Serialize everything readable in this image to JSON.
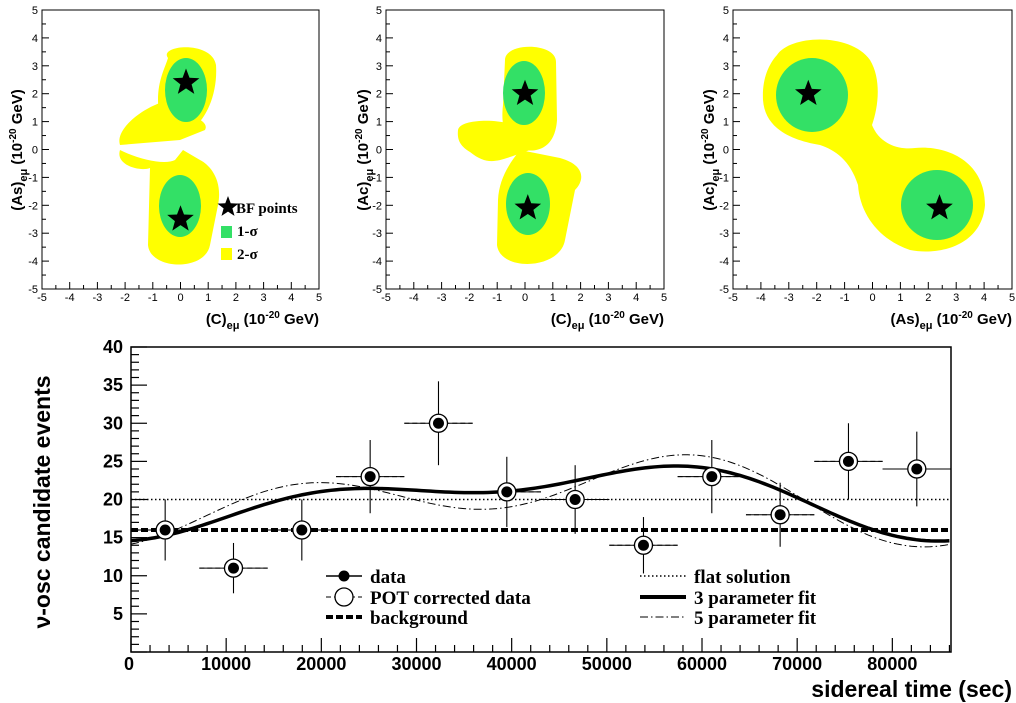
{
  "chart_data": [
    {
      "type": "contour",
      "panel": "top-left",
      "xlabel": "(C)eμ (10-20 GeV)",
      "ylabel": "(As)eμ (10-20 GeV)",
      "xlim": [
        -5,
        5
      ],
      "ylim": [
        -5,
        5
      ],
      "ticks": [
        "-5",
        "-4",
        "-3",
        "-2",
        "-1",
        "0",
        "1",
        "2",
        "3",
        "4",
        "5"
      ],
      "best_fit_points": [
        {
          "x": 0.2,
          "y": 2.4
        },
        {
          "x": 0.0,
          "y": -2.5
        }
      ],
      "legend": [
        {
          "label": "BF points",
          "symbol": "star"
        },
        {
          "label": "1-σ",
          "color": "#33e066"
        },
        {
          "label": "2-σ",
          "color": "#ffff00"
        }
      ]
    },
    {
      "type": "contour",
      "panel": "top-middle",
      "xlabel": "(C)eμ (10-20 GeV)",
      "ylabel": "(Ac)eμ (10-20 GeV)",
      "xlim": [
        -5,
        5
      ],
      "ylim": [
        -5,
        5
      ],
      "ticks": [
        "-5",
        "-4",
        "-3",
        "-2",
        "-1",
        "0",
        "1",
        "2",
        "3",
        "4",
        "5"
      ],
      "best_fit_points": [
        {
          "x": 0.0,
          "y": 2.0
        },
        {
          "x": 0.1,
          "y": -2.1
        }
      ]
    },
    {
      "type": "contour",
      "panel": "top-right",
      "xlabel": "(As)eμ (10-20 GeV)",
      "ylabel": "(Ac)eμ (10-20 GeV)",
      "xlim": [
        -5,
        5
      ],
      "ylim": [
        -5,
        5
      ],
      "ticks": [
        "-5",
        "-4",
        "-3",
        "-2",
        "-1",
        "0",
        "1",
        "2",
        "3",
        "4",
        "5"
      ],
      "best_fit_points": [
        {
          "x": -2.3,
          "y": 2.0
        },
        {
          "x": 2.4,
          "y": -2.1
        }
      ]
    },
    {
      "type": "scatter",
      "panel": "bottom",
      "xlabel": "sidereal time (sec)",
      "ylabel": "ν-osc candidate events",
      "xlim": [
        0,
        86164
      ],
      "ylim": [
        0,
        40
      ],
      "xticks": [
        "0",
        "10000",
        "20000",
        "30000",
        "40000",
        "50000",
        "60000",
        "70000",
        "80000"
      ],
      "yticks": [
        "5",
        "10",
        "15",
        "20",
        "25",
        "30",
        "35",
        "40"
      ],
      "x": [
        3590,
        10770,
        17950,
        25130,
        32310,
        39490,
        46670,
        53850,
        61030,
        68210,
        75390,
        82570
      ],
      "data_points": [
        16,
        11,
        16,
        23,
        30,
        21,
        20,
        14,
        23,
        18,
        25,
        24
      ],
      "pot_corrected": [
        16,
        11,
        16,
        23,
        30,
        21,
        20,
        14,
        23,
        18,
        25,
        24
      ],
      "errors": [
        4,
        3.3,
        4,
        4.8,
        5.5,
        4.6,
        4.5,
        3.7,
        4.8,
        4.2,
        5,
        4.9
      ],
      "background": 16,
      "flat_solution": 20,
      "legend": [
        {
          "label": "data",
          "style": "filled-marker"
        },
        {
          "label": "POT corrected data",
          "style": "open-marker-dashed"
        },
        {
          "label": "background",
          "style": "thick-dashed"
        },
        {
          "label": "flat solution",
          "style": "dotted"
        },
        {
          "label": "3 parameter fit",
          "style": "thick-solid"
        },
        {
          "label": "5 parameter fit",
          "style": "dash-dot"
        }
      ]
    }
  ]
}
